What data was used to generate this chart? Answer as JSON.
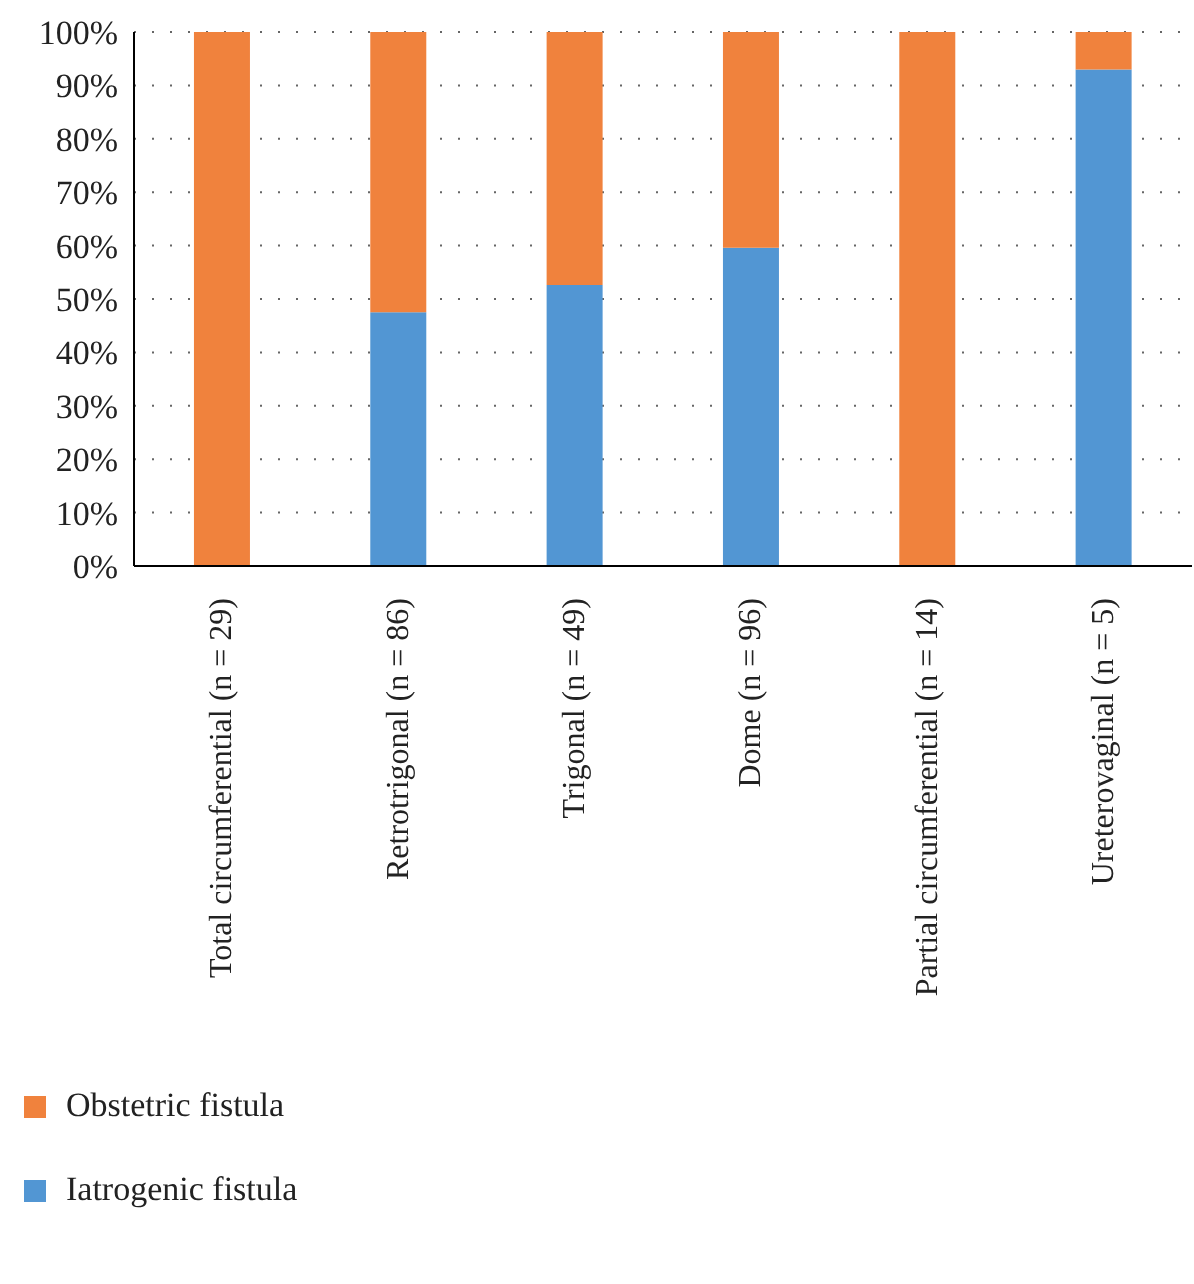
{
  "chart_data": {
    "type": "bar",
    "stacked": true,
    "categories": [
      "Total circumferential (n = 29)",
      "Retrotrigonal (n = 86)",
      "Trigonal (n = 49)",
      "Dome (n = 96)",
      "Partial circumferential (n = 14)",
      "Ureterovaginal (n = 5)"
    ],
    "series": [
      {
        "name": "Iatrogenic fistula",
        "color": "#5296d3",
        "values": [
          0,
          47.5,
          52.6,
          59.6,
          0,
          93
        ]
      },
      {
        "name": "Obstetric fistula",
        "color": "#f0823d",
        "values": [
          100,
          52.5,
          47.4,
          40.4,
          100,
          7
        ]
      }
    ],
    "ylim": [
      0,
      100
    ],
    "yticks": [
      {
        "value": 0,
        "label": "0%"
      },
      {
        "value": 10,
        "label": "10%"
      },
      {
        "value": 20,
        "label": "20%"
      },
      {
        "value": 30,
        "label": "30%"
      },
      {
        "value": 40,
        "label": "40%"
      },
      {
        "value": 50,
        "label": "50%"
      },
      {
        "value": 60,
        "label": "60%"
      },
      {
        "value": 70,
        "label": "70%"
      },
      {
        "value": 80,
        "label": "80%"
      },
      {
        "value": 90,
        "label": "90%"
      },
      {
        "value": 100,
        "label": "100%"
      }
    ],
    "grid": "y",
    "legend": "bottom"
  }
}
